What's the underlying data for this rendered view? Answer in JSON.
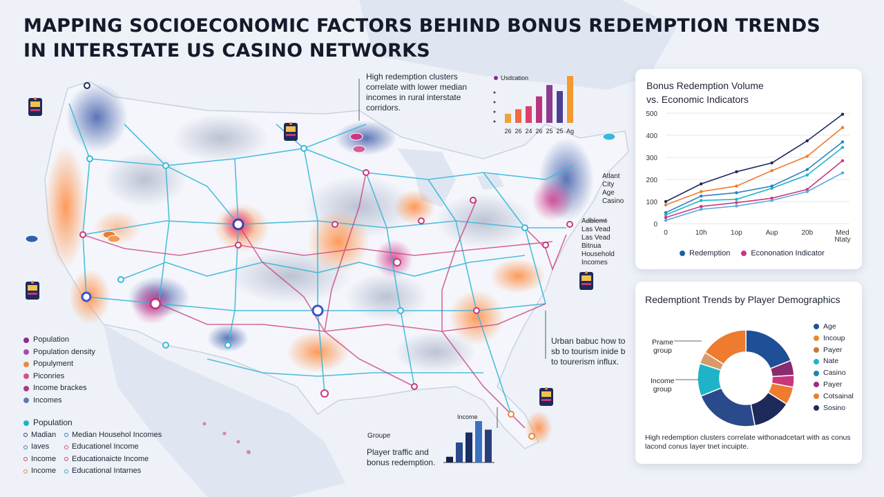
{
  "title": {
    "line1": "MAPPING SOCIOECONOMIC FACTORS BEHIND BONUS REDEMPTION TRENDS",
    "line2": "IN INTERSTATE US CASINO NETWORKS"
  },
  "annotations": {
    "top_note": "High redemption clusters correlate with lower median incomes in rural interstate corridors.",
    "urban_note": "Urban babuc how to sb to tourism inide b to tourerism influx.",
    "bottom_caption": "Player traffic and bonus redemption.",
    "groupe_label": "Groupe",
    "income_label": "Income"
  },
  "city_labels": {
    "east": [
      "Atlant",
      "City",
      "Age",
      "Casino"
    ],
    "mid_east": [
      "Adblemt",
      "Las Vead",
      "Las Vead",
      "Bitnua",
      "Household",
      "Incomes"
    ]
  },
  "mini_bar": {
    "legend": "Usdcation",
    "values": [
      12,
      18,
      22,
      35,
      50,
      42,
      62
    ],
    "x_labels": [
      "26",
      "26",
      "24",
      "26",
      "25",
      "25",
      "Ag"
    ],
    "colors": [
      "#f0a13a",
      "#ee6a45",
      "#dc3f6a",
      "#b8357e",
      "#8a3c8e",
      "#4b3f93",
      "#f39a2e"
    ]
  },
  "bottom_bars": {
    "values": [
      8,
      28,
      42,
      58,
      46
    ],
    "colors": [
      "#15204a",
      "#2a4a8c",
      "#1a2d66",
      "#3a72c0",
      "#2a3f7a"
    ]
  },
  "left_legend": {
    "group1": [
      {
        "label": "Population",
        "color": "#8b2b8e"
      },
      {
        "label": "Population density",
        "color": "#a34ea6"
      },
      {
        "label": "Populyment",
        "color": "#e58a3f"
      },
      {
        "label": "Piconries",
        "color": "#d3517b"
      },
      {
        "label": "Income brackes",
        "color": "#b0397d"
      },
      {
        "label": "Incomes",
        "color": "#5a7dad"
      }
    ],
    "group2_heading": "Population",
    "group2_color": "#1fb3c7",
    "group2_rows": [
      {
        "left": "Madian",
        "left_color": "#2a3f7a",
        "right": "Median Househol Incomes",
        "right_color": "#2f7fc1"
      },
      {
        "left": "Iaves",
        "left_color": "#2f7fc1",
        "right": "Educationel Income",
        "right_color": "#d3517b"
      },
      {
        "left": "Income",
        "left_color": "#c83f6a",
        "right": "Educationaicte Income",
        "right_color": "#c83f6a"
      },
      {
        "left": "Income",
        "left_color": "#e58a3f",
        "right": "Educational Intarnes",
        "right_color": "#1fb3c7"
      }
    ]
  },
  "line_card": {
    "title_line1": "Bonus Redemption Volume",
    "title_line2": "vs. Economic Indicators",
    "legend": [
      {
        "label": "Redemption",
        "color": "#1f5fa6"
      },
      {
        "label": "Econonation Indicator",
        "color": "#c8377a"
      }
    ]
  },
  "donut_card": {
    "title": "Redemptiont Trends by Player Demographics",
    "left_labels": [
      {
        "line1": "Prame",
        "line2": "group"
      },
      {
        "line1": "Income",
        "line2": "group"
      }
    ],
    "legend": [
      {
        "label": "Age",
        "color": "#1f4f96"
      },
      {
        "label": "Incoup",
        "color": "#e98a2f"
      },
      {
        "label": "Payer",
        "color": "#c47a3a"
      },
      {
        "label": "Nate",
        "color": "#1fb3c7"
      },
      {
        "label": "Casino",
        "color": "#1a86b0"
      },
      {
        "label": "Payer",
        "color": "#9a2f7c"
      },
      {
        "label": "Cotsainal",
        "color": "#ee7b2e"
      },
      {
        "label": "Sosino",
        "color": "#1d2a5a"
      }
    ],
    "footer": "High redemption clusters correlate withonadcetart with as conus lacond conus layer tnet incuipte."
  },
  "chart_data": [
    {
      "type": "line",
      "title": "Bonus Redemption Volume vs. Economic Indicators",
      "x": [
        "0",
        "10h",
        "1op",
        "Aup",
        "20b",
        "Med Ntaty"
      ],
      "ylim": [
        0,
        500
      ],
      "yticks": [
        0,
        100,
        200,
        300,
        400,
        500
      ],
      "series": [
        {
          "color": "#1d2a5a",
          "values": [
            100,
            180,
            235,
            275,
            375,
            495
          ]
        },
        {
          "color": "#ee7b2e",
          "values": [
            85,
            145,
            170,
            240,
            305,
            435
          ]
        },
        {
          "color": "#2f7fc1",
          "values": [
            50,
            125,
            140,
            170,
            245,
            370
          ]
        },
        {
          "color": "#1fb3c7",
          "values": [
            40,
            105,
            110,
            160,
            220,
            345
          ]
        },
        {
          "color": "#c8377a",
          "values": [
            28,
            78,
            95,
            115,
            155,
            285
          ]
        },
        {
          "color": "#5aa8e0",
          "values": [
            15,
            65,
            80,
            105,
            145,
            230
          ]
        }
      ]
    },
    {
      "type": "pie",
      "title": "Redemptiont Trends by Player Demographics",
      "donut": true,
      "values": [
        {
          "value": 19,
          "color": "#1f4f96"
        },
        {
          "value": 5,
          "color": "#8a2b6e"
        },
        {
          "value": 4,
          "color": "#c8377a"
        },
        {
          "value": 6,
          "color": "#ee7b2e"
        },
        {
          "value": 13,
          "color": "#1d2a5a"
        },
        {
          "value": 22,
          "color": "#2a4a8c"
        },
        {
          "value": 11,
          "color": "#1fb3c7"
        },
        {
          "value": 4,
          "color": "#d89a6a"
        },
        {
          "value": 16,
          "color": "#ee7b2e"
        }
      ]
    }
  ]
}
